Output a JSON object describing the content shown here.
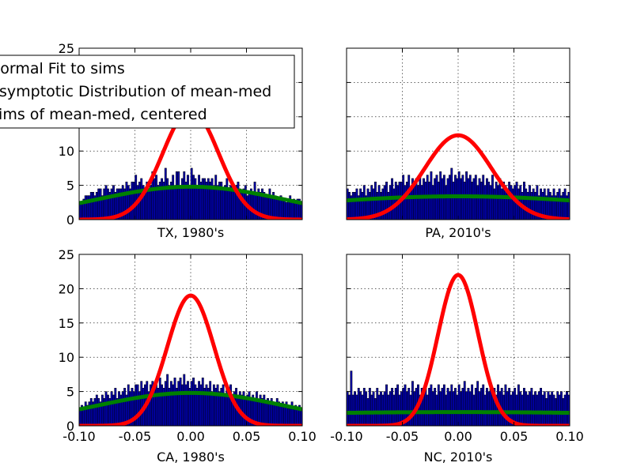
{
  "figure": {
    "legend": {
      "placement": "top-left, overlapping first panel",
      "entries": [
        {
          "label": "Normal Fit to sims",
          "color": "#ff0000"
        },
        {
          "label": "Asymptotic Distribution of mean-med",
          "color": "#008000"
        },
        {
          "label": "Sims of mean-med, centered",
          "color": "#0000aa"
        }
      ]
    }
  },
  "chart_data": [
    {
      "type": "bar",
      "title": "TX, 1980's",
      "xlim": [
        -0.1,
        0.1
      ],
      "ylim": [
        0,
        25
      ],
      "xticks": [
        "-0.10",
        "-0.05",
        "0.00",
        "0.05",
        "0.10"
      ],
      "yticks": [
        "0",
        "5",
        "10",
        "15",
        "20",
        "25"
      ],
      "show_x_ticklabels": false,
      "show_y_ticklabels": true,
      "grid": true,
      "hist_color": "#0000aa",
      "hist_values": [
        2.5,
        2.5,
        3.0,
        3.5,
        3.5,
        3.5,
        4.0,
        4.0,
        3.5,
        4.0,
        4.5,
        4.5,
        3.5,
        4.5,
        5.0,
        4.5,
        4.0,
        4.5,
        5.0,
        4.0,
        4.5,
        4.5,
        4.5,
        5.0,
        4.5,
        5.5,
        5.0,
        4.5,
        5.5,
        5.5,
        6.5,
        5.0,
        5.5,
        6.0,
        5.0,
        4.5,
        5.5,
        4.5,
        5.0,
        7.0,
        6.0,
        6.5,
        5.0,
        5.5,
        6.0,
        5.5,
        7.5,
        6.0,
        5.0,
        5.5,
        6.5,
        5.0,
        7.0,
        7.0,
        5.0,
        6.0,
        7.0,
        5.5,
        6.5,
        5.0,
        7.5,
        6.5,
        6.0,
        5.0,
        6.5,
        5.5,
        6.0,
        6.0,
        5.5,
        6.0,
        5.5,
        6.0,
        5.0,
        6.5,
        5.0,
        5.5,
        5.5,
        4.5,
        5.0,
        6.0,
        4.5,
        5.0,
        5.0,
        4.5,
        5.0,
        5.5,
        4.5,
        4.0,
        4.5,
        5.0,
        3.5,
        4.0,
        4.5,
        4.0,
        5.5,
        4.0,
        4.5,
        4.0,
        4.5,
        4.0,
        3.5,
        3.5,
        4.5,
        3.5,
        4.0,
        3.5,
        3.0,
        3.0,
        3.5,
        3.0,
        3.0,
        2.5,
        3.0,
        3.5,
        2.5,
        3.0,
        2.5,
        3.0,
        3.0,
        2.5
      ],
      "normal_fit": {
        "mean": 0.0,
        "peak": 16.0,
        "sigma": 0.025,
        "color": "#ff0000"
      },
      "asymptotic": {
        "mean": 0.0,
        "peak": 4.8,
        "sigma": 0.085,
        "color": "#008000"
      }
    },
    {
      "type": "bar",
      "title": "PA, 2010's",
      "xlim": [
        -0.1,
        0.1
      ],
      "ylim": [
        0,
        25
      ],
      "xticks": [
        "-0.10",
        "-0.05",
        "0.00",
        "0.05",
        "0.10"
      ],
      "yticks": [
        "0",
        "5",
        "10",
        "15",
        "20",
        "25"
      ],
      "show_x_ticklabels": false,
      "show_y_ticklabels": false,
      "grid": true,
      "hist_color": "#0000aa",
      "hist_values": [
        4.5,
        4.0,
        3.5,
        4.0,
        4.0,
        4.5,
        3.5,
        4.5,
        4.0,
        5.0,
        3.5,
        4.5,
        4.0,
        5.0,
        4.5,
        5.5,
        4.0,
        5.0,
        4.0,
        4.5,
        5.0,
        5.5,
        4.0,
        5.0,
        6.0,
        4.5,
        5.5,
        5.0,
        5.5,
        5.5,
        6.5,
        5.0,
        5.5,
        6.5,
        4.5,
        6.0,
        5.5,
        6.0,
        5.0,
        6.5,
        5.0,
        6.0,
        5.5,
        6.5,
        5.5,
        7.0,
        5.0,
        6.0,
        6.5,
        5.5,
        7.0,
        6.0,
        6.5,
        5.0,
        6.0,
        6.5,
        7.5,
        5.5,
        6.5,
        6.0,
        7.0,
        6.0,
        6.5,
        5.5,
        7.0,
        6.0,
        6.5,
        5.5,
        6.0,
        6.5,
        5.0,
        6.0,
        5.5,
        6.5,
        5.0,
        6.0,
        5.5,
        5.0,
        6.5,
        4.5,
        5.5,
        5.0,
        6.0,
        4.5,
        5.5,
        5.0,
        4.5,
        5.5,
        5.0,
        4.5,
        5.0,
        5.5,
        4.5,
        5.0,
        4.0,
        5.5,
        4.5,
        4.0,
        5.0,
        4.0,
        4.5,
        4.0,
        5.0,
        3.5,
        4.5,
        4.0,
        4.5,
        3.5,
        4.5,
        4.0,
        3.5,
        4.5,
        3.5,
        4.0,
        4.5,
        3.5,
        4.0,
        4.5,
        3.5,
        4.0
      ],
      "normal_fit": {
        "mean": 0.0,
        "peak": 12.3,
        "sigma": 0.03,
        "color": "#ff0000"
      },
      "asymptotic": {
        "mean": 0.0,
        "peak": 3.4,
        "sigma": 0.16,
        "color": "#008000"
      }
    },
    {
      "type": "bar",
      "title": "CA, 1980's",
      "xlim": [
        -0.1,
        0.1
      ],
      "ylim": [
        0,
        25
      ],
      "xticks": [
        "-0.10",
        "-0.05",
        "0.00",
        "0.05",
        "0.10"
      ],
      "yticks": [
        "0",
        "5",
        "10",
        "15",
        "20",
        "25"
      ],
      "show_x_ticklabels": true,
      "show_y_ticklabels": true,
      "grid": true,
      "hist_color": "#0000aa",
      "hist_values": [
        2.5,
        3.0,
        2.5,
        3.5,
        3.0,
        3.5,
        4.0,
        3.5,
        4.0,
        4.5,
        4.0,
        3.5,
        4.5,
        4.0,
        5.0,
        4.5,
        4.0,
        5.0,
        4.5,
        5.5,
        4.0,
        5.0,
        4.5,
        5.0,
        5.5,
        4.5,
        6.0,
        5.0,
        5.5,
        5.0,
        6.0,
        6.0,
        5.0,
        6.5,
        5.5,
        6.0,
        6.5,
        5.0,
        6.0,
        6.5,
        5.5,
        6.5,
        5.5,
        7.0,
        6.0,
        5.5,
        6.5,
        7.5,
        5.5,
        6.5,
        6.0,
        7.0,
        5.5,
        6.5,
        7.0,
        6.0,
        7.5,
        6.0,
        6.5,
        5.5,
        6.5,
        7.0,
        6.0,
        5.5,
        6.5,
        6.0,
        7.0,
        5.5,
        6.0,
        5.5,
        6.5,
        5.0,
        6.0,
        5.5,
        6.0,
        5.0,
        5.5,
        6.0,
        4.5,
        5.5,
        5.0,
        6.0,
        4.5,
        5.0,
        5.5,
        4.5,
        5.0,
        4.5,
        5.0,
        4.0,
        4.5,
        5.0,
        4.0,
        4.5,
        4.0,
        5.0,
        3.5,
        4.5,
        4.0,
        4.5,
        3.5,
        4.0,
        3.5,
        4.0,
        3.5,
        3.0,
        4.0,
        3.5,
        3.0,
        3.5,
        3.0,
        3.5,
        2.5,
        3.0,
        3.5,
        2.5,
        3.0,
        2.5,
        3.0,
        2.5
      ],
      "normal_fit": {
        "mean": 0.0,
        "peak": 19.0,
        "sigma": 0.021,
        "color": "#ff0000"
      },
      "asymptotic": {
        "mean": 0.0,
        "peak": 4.8,
        "sigma": 0.085,
        "color": "#008000"
      }
    },
    {
      "type": "bar",
      "title": "NC, 2010's",
      "xlim": [
        -0.1,
        0.1
      ],
      "ylim": [
        0,
        25
      ],
      "xticks": [
        "-0.10",
        "-0.05",
        "0.00",
        "0.05",
        "0.10"
      ],
      "yticks": [
        "0",
        "5",
        "10",
        "15",
        "20",
        "25"
      ],
      "show_x_ticklabels": true,
      "show_y_ticklabels": false,
      "grid": true,
      "hist_color": "#0000aa",
      "hist_values": [
        5.0,
        4.5,
        8.0,
        4.5,
        5.0,
        4.5,
        5.5,
        5.0,
        4.5,
        5.5,
        5.0,
        4.0,
        5.5,
        4.5,
        5.0,
        4.0,
        5.5,
        4.5,
        5.0,
        4.5,
        5.0,
        6.0,
        4.5,
        5.0,
        5.5,
        4.5,
        5.5,
        6.0,
        4.5,
        5.0,
        5.5,
        6.0,
        5.0,
        5.5,
        4.5,
        6.5,
        5.0,
        5.5,
        6.0,
        4.5,
        5.5,
        5.0,
        6.0,
        4.5,
        5.5,
        6.0,
        5.0,
        5.5,
        4.5,
        6.0,
        5.0,
        5.5,
        6.0,
        4.5,
        5.5,
        5.0,
        6.0,
        5.0,
        5.5,
        4.5,
        6.0,
        5.0,
        5.5,
        6.5,
        5.0,
        5.5,
        5.0,
        6.0,
        4.5,
        5.5,
        6.5,
        5.0,
        5.5,
        6.0,
        4.5,
        5.5,
        5.0,
        6.0,
        5.0,
        5.5,
        4.5,
        6.0,
        5.0,
        5.5,
        4.5,
        6.0,
        5.0,
        5.5,
        4.5,
        5.0,
        5.5,
        4.5,
        6.0,
        5.0,
        4.5,
        5.5,
        5.0,
        4.5,
        5.0,
        5.5,
        4.5,
        5.0,
        4.5,
        5.0,
        5.5,
        4.5,
        5.0,
        4.0,
        5.0,
        4.5,
        5.0,
        4.5,
        4.0,
        5.0,
        4.5,
        5.0,
        4.0,
        4.5,
        5.0,
        4.5
      ],
      "normal_fit": {
        "mean": 0.0,
        "peak": 22.0,
        "sigma": 0.018,
        "color": "#ff0000"
      },
      "asymptotic": {
        "mean": 0.0,
        "peak": 2.0,
        "sigma": 0.3,
        "color": "#008000"
      }
    }
  ]
}
